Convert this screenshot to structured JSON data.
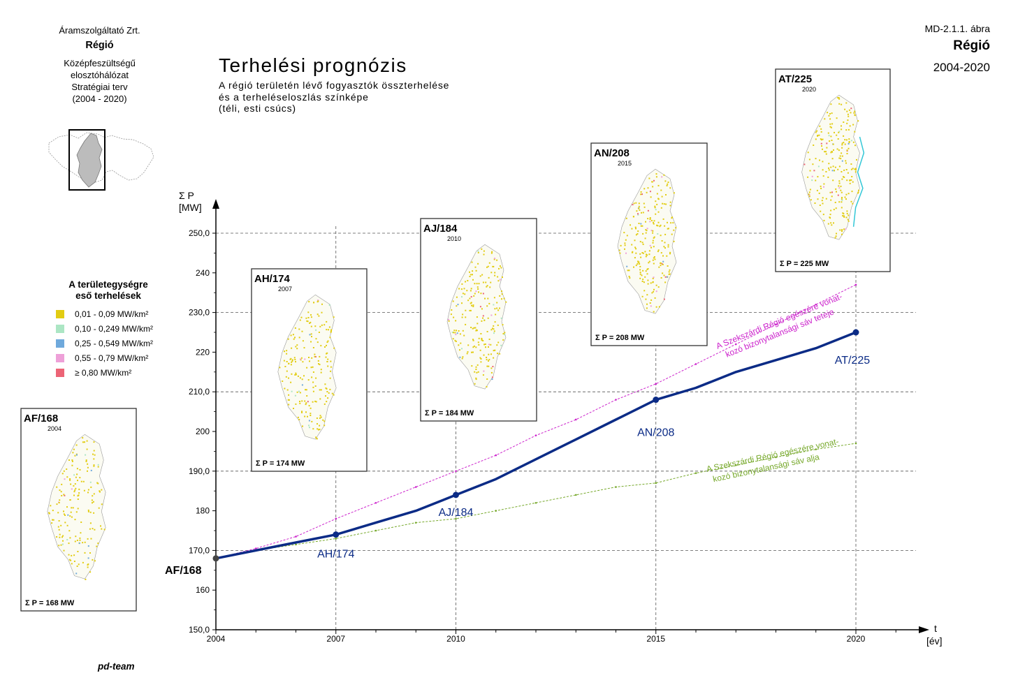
{
  "header": {
    "company": "Áramszolgáltató Zrt.",
    "region": "Régió",
    "plan_lines": [
      "Középfeszültségű",
      "elosztóhálózat",
      "Stratégiai terv",
      "(2004 - 2020)"
    ],
    "figure_id": "MD-2.1.1. ábra",
    "region_right": "Régió",
    "period": "2004-2020"
  },
  "title": "Terhelési prognózis",
  "subtitle_lines": [
    "A régió területén lévő fogyasztók összterhelése",
    "és a terheléseloszlás színképe",
    "(téli, esti csúcs)"
  ],
  "legend": {
    "title_lines": [
      "A területegységre",
      "eső terhelések"
    ],
    "items": [
      {
        "label": "0,01 - 0,09 MW/km²",
        "color": "#e2cc12"
      },
      {
        "label": "0,10 - 0,249 MW/km²",
        "color": "#ace6c4"
      },
      {
        "label": "0,25 - 0,549 MW/km²",
        "color": "#6fa9dc"
      },
      {
        "label": "0,55 - 0,79 MW/km²",
        "color": "#eea0d8"
      },
      {
        "label": "≥ 0,80 MW/km²",
        "color": "#ec6476"
      }
    ]
  },
  "footer": "pd-team",
  "colors": {
    "main_line": "#0b2b86",
    "upper_band": "#cc22cc",
    "lower_band": "#76a82a",
    "map_frame": "#333333"
  },
  "chart_data": {
    "type": "line",
    "ylabel": "Σ P",
    "yunit": "[MW]",
    "xlabel": "t",
    "xunit": "[év]",
    "ylim": [
      150,
      255
    ],
    "xlim": [
      2004,
      2021.5
    ],
    "y_ticks": [
      {
        "value": 150,
        "label": "150,0"
      },
      {
        "value": 160,
        "label": "160"
      },
      {
        "value": 170,
        "label": "170,0"
      },
      {
        "value": 180,
        "label": "180"
      },
      {
        "value": 190,
        "label": "190,0"
      },
      {
        "value": 200,
        "label": "200"
      },
      {
        "value": 210,
        "label": "210,0"
      },
      {
        "value": 220,
        "label": "220"
      },
      {
        "value": 230,
        "label": "230,0"
      },
      {
        "value": 240,
        "label": "240"
      },
      {
        "value": 250,
        "label": "250,0"
      }
    ],
    "x_ticks": [
      {
        "value": 2004,
        "label": "2004"
      },
      {
        "value": 2007,
        "label": "2007"
      },
      {
        "value": 2010,
        "label": "2010"
      },
      {
        "value": 2015,
        "label": "2015"
      },
      {
        "value": 2020,
        "label": "2020"
      }
    ],
    "grid": true,
    "series": [
      {
        "type": "main",
        "points": [
          [
            2004,
            168
          ],
          [
            2005,
            170
          ],
          [
            2006,
            172
          ],
          [
            2007,
            174
          ],
          [
            2008,
            177
          ],
          [
            2009,
            180
          ],
          [
            2010,
            184
          ],
          [
            2011,
            188
          ],
          [
            2012,
            193
          ],
          [
            2013,
            198
          ],
          [
            2014,
            203
          ],
          [
            2015,
            208
          ],
          [
            2016,
            211
          ],
          [
            2017,
            215
          ],
          [
            2018,
            218
          ],
          [
            2019,
            221
          ],
          [
            2020,
            225
          ]
        ]
      },
      {
        "type": "upper",
        "points": [
          [
            2004,
            168
          ],
          [
            2005,
            170.5
          ],
          [
            2006,
            173.5
          ],
          [
            2007,
            178
          ],
          [
            2008,
            182
          ],
          [
            2009,
            186
          ],
          [
            2010,
            190
          ],
          [
            2011,
            194
          ],
          [
            2012,
            199
          ],
          [
            2013,
            203
          ],
          [
            2014,
            208
          ],
          [
            2015,
            212
          ],
          [
            2016,
            217
          ],
          [
            2017,
            222
          ],
          [
            2018,
            227
          ],
          [
            2019,
            232
          ],
          [
            2020,
            237
          ]
        ]
      },
      {
        "type": "lower",
        "points": [
          [
            2004,
            168
          ],
          [
            2005,
            170
          ],
          [
            2006,
            171.5
          ],
          [
            2007,
            173
          ],
          [
            2008,
            175
          ],
          [
            2009,
            177
          ],
          [
            2010,
            178
          ],
          [
            2011,
            180
          ],
          [
            2012,
            182
          ],
          [
            2013,
            184
          ],
          [
            2014,
            186
          ],
          [
            2015,
            187
          ],
          [
            2016,
            189.5
          ],
          [
            2017,
            191.5
          ],
          [
            2018,
            193.5
          ],
          [
            2019,
            195.5
          ],
          [
            2020,
            197
          ]
        ]
      }
    ],
    "band_labels": [
      {
        "lines": [
          "A Szekszárdi Régió egészére vonat-",
          "kozó bizonytalansági sáv teteje"
        ]
      },
      {
        "lines": [
          "A Szekszárdi Régió egészére vonat-",
          "kozó bizonytalansági sáv alja"
        ]
      }
    ],
    "point_labels": [
      {
        "x": 2004,
        "y": 168,
        "label": "AF/168"
      },
      {
        "x": 2007,
        "y": 174,
        "label": "AH/174"
      },
      {
        "x": 2010,
        "y": 184,
        "label": "AJ/184"
      },
      {
        "x": 2015,
        "y": 208,
        "label": "AN/208"
      },
      {
        "x": 2020,
        "y": 225,
        "label": "AT/225"
      }
    ]
  },
  "maps": [
    {
      "code": "AF/168",
      "year": "2004",
      "sum": "Σ P = 168 MW"
    },
    {
      "code": "AH/174",
      "year": "2007",
      "sum": "Σ P = 174 MW"
    },
    {
      "code": "AJ/184",
      "year": "2010",
      "sum": "Σ P = 184 MW"
    },
    {
      "code": "AN/208",
      "year": "2015",
      "sum": "Σ P = 208 MW"
    },
    {
      "code": "AT/225",
      "year": "2020",
      "sum": "Σ P = 225 MW"
    }
  ]
}
